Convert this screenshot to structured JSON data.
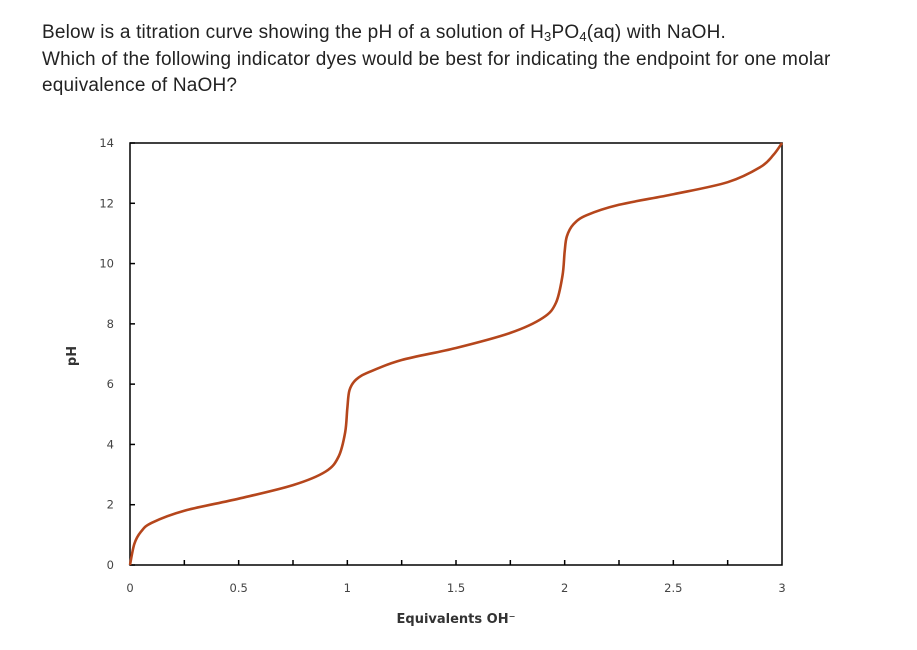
{
  "question": {
    "line1_pre": "Below is a titration curve showing the pH of a solution of H",
    "sub1": "3",
    "mid": "PO",
    "sub2": "4",
    "line1_post": "(aq) with NaOH.",
    "rest": "Which of the following indicator dyes would be best for indicating the endpoint for one molar equivalence of NaOH?"
  },
  "chart_data": {
    "type": "line",
    "title": "",
    "xlabel": "Equivalents OH⁻",
    "ylabel": "pH",
    "xlim": [
      0,
      3
    ],
    "ylim": [
      0,
      14
    ],
    "xticks": [
      "0",
      "0.5",
      "1",
      "1.5",
      "2",
      "2.5",
      "3"
    ],
    "yticks": [
      "0",
      "2",
      "4",
      "6",
      "8",
      "10",
      "12",
      "14"
    ],
    "grid": false,
    "line_color": "#b5461c",
    "series": [
      {
        "x": [
          0,
          0.02,
          0.05,
          0.1,
          0.25,
          0.5,
          0.75,
          0.9,
          0.96,
          0.99,
          1.0,
          1.01,
          1.04,
          1.1,
          1.25,
          1.5,
          1.75,
          1.9,
          1.96,
          1.99,
          2.0,
          2.01,
          2.04,
          2.1,
          2.25,
          2.5,
          2.75,
          2.9,
          2.96,
          3.0
        ],
        "y": [
          0,
          0.7,
          1.1,
          1.4,
          1.8,
          2.2,
          2.65,
          3.1,
          3.6,
          4.4,
          5.2,
          5.8,
          6.15,
          6.4,
          6.8,
          7.2,
          7.7,
          8.2,
          8.7,
          9.6,
          10.4,
          10.9,
          11.3,
          11.6,
          11.95,
          12.3,
          12.7,
          13.2,
          13.6,
          14.0
        ]
      }
    ]
  }
}
